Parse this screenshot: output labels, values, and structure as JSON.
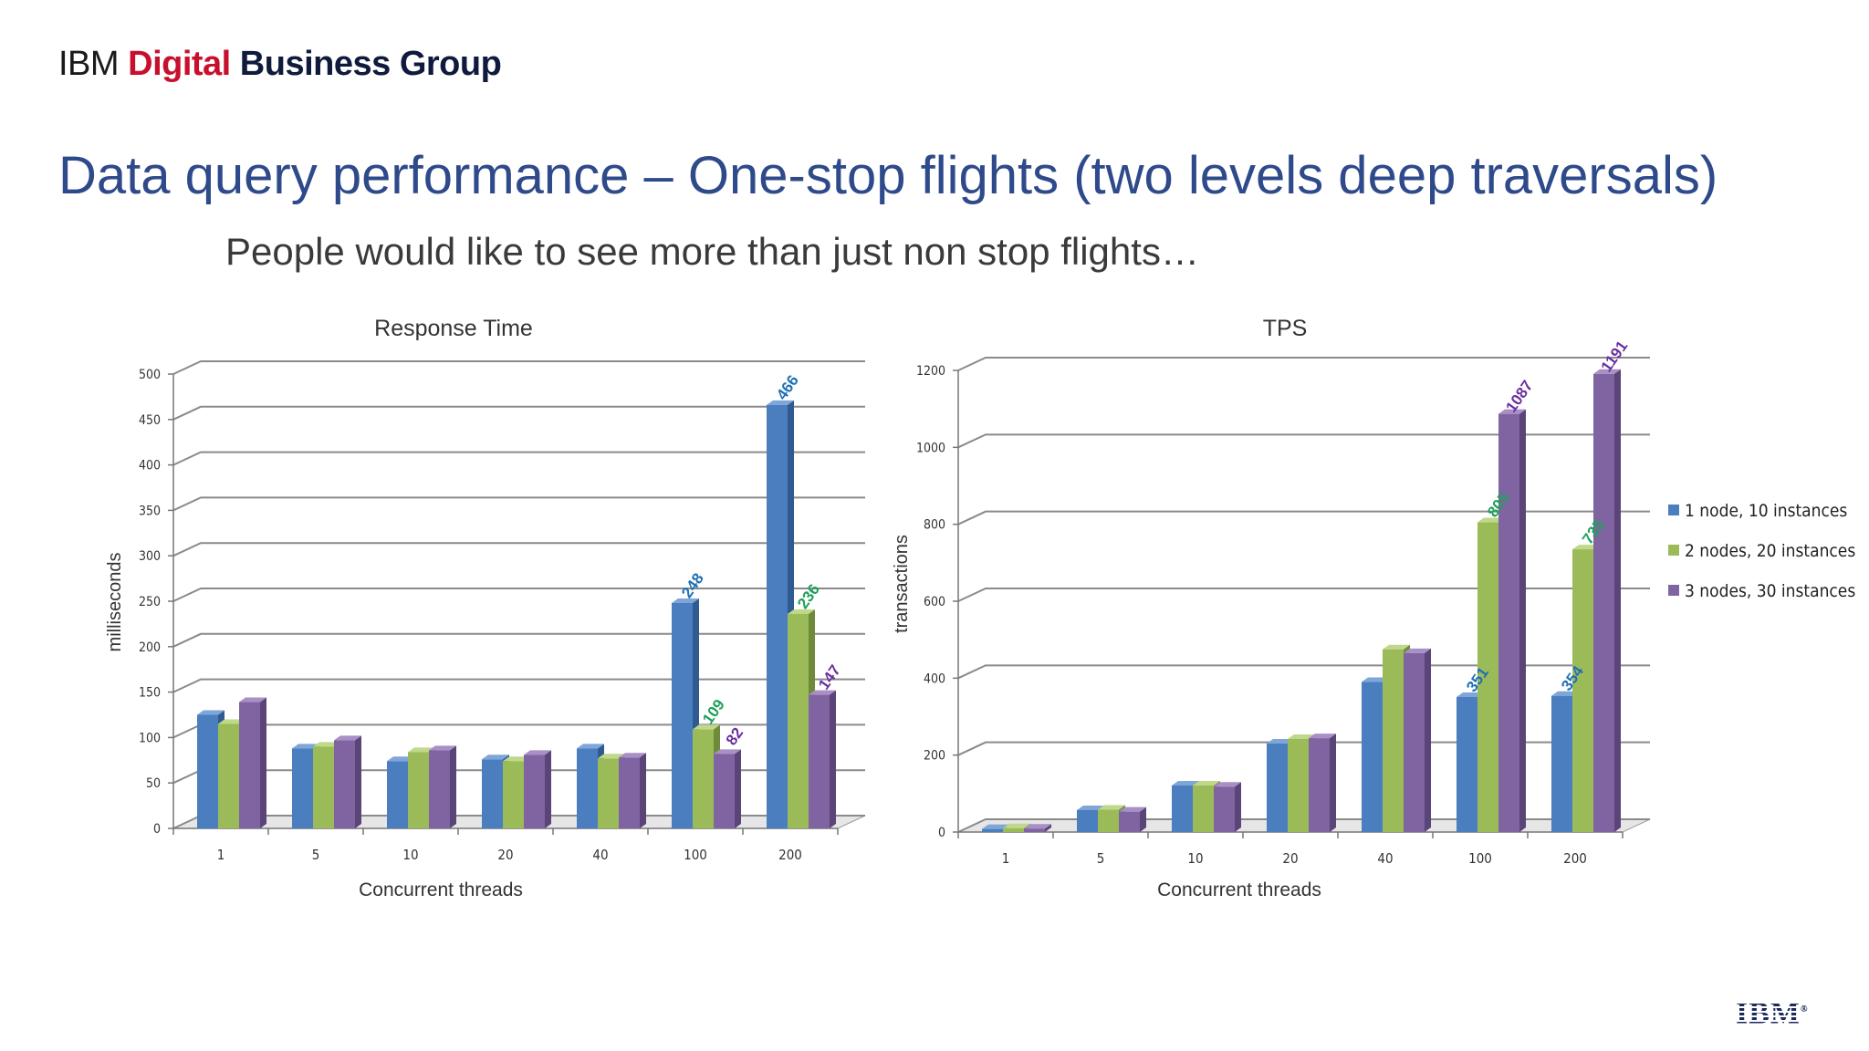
{
  "header": {
    "brand_ibm": "IBM ",
    "brand_digital": "Digital",
    "brand_rest": " Business Group",
    "title": "Data query performance – One-stop flights (two levels deep traversals)",
    "subtitle": "People would like to see more than just non stop flights…"
  },
  "footer": {
    "logo_text": "IBM",
    "logo_mark": "®"
  },
  "colors": {
    "series": [
      "#4a7ebf",
      "#9bbb59",
      "#8064a2"
    ],
    "series_dark": [
      "#2f5b91",
      "#6f8a3a",
      "#5b4478"
    ],
    "series_top": [
      "#7fa6d8",
      "#bfd88a",
      "#a88fc6"
    ],
    "label_colors": [
      "#1f6fb5",
      "#1fa05a",
      "#6b2fa0"
    ],
    "grid": "#8a8a8a"
  },
  "chart_data": [
    {
      "type": "bar",
      "title": "Response Time",
      "xlabel": "Concurrent threads",
      "ylabel": "milliseconds",
      "categories": [
        "1",
        "5",
        "10",
        "20",
        "40",
        "100",
        "200"
      ],
      "ylim": [
        0,
        500
      ],
      "yticks": [
        "0",
        "50",
        "100",
        "150",
        "200",
        "250",
        "300",
        "350",
        "400",
        "450",
        "500"
      ],
      "grid": true,
      "legend": "none",
      "series": [
        {
          "values": [
            125,
            88,
            74,
            76,
            88,
            248,
            466
          ]
        },
        {
          "values": [
            115,
            90,
            84,
            74,
            77,
            109,
            236
          ]
        },
        {
          "values": [
            139,
            97,
            86,
            81,
            78,
            82,
            147
          ]
        }
      ],
      "data_labels": [
        {
          "series": 0,
          "category": 5,
          "text": "248"
        },
        {
          "series": 1,
          "category": 5,
          "text": "109"
        },
        {
          "series": 2,
          "category": 5,
          "text": "82"
        },
        {
          "series": 0,
          "category": 6,
          "text": "466"
        },
        {
          "series": 1,
          "category": 6,
          "text": "236"
        },
        {
          "series": 2,
          "category": 6,
          "text": "147"
        }
      ]
    },
    {
      "type": "bar",
      "title": "TPS",
      "xlabel": "Concurrent threads",
      "ylabel": "transactions",
      "categories": [
        "1",
        "5",
        "10",
        "20",
        "40",
        "100",
        "200"
      ],
      "ylim": [
        0,
        1200
      ],
      "yticks": [
        "0",
        "200",
        "400",
        "600",
        "800",
        "1000",
        "1200"
      ],
      "grid": true,
      "legend": "right",
      "series": [
        {
          "name": "1 node, 10 instances",
          "values": [
            8,
            57,
            121,
            230,
            390,
            351,
            354
          ]
        },
        {
          "name": "2 nodes, 20 instances",
          "values": [
            10,
            58,
            121,
            242,
            475,
            805,
            735
          ]
        },
        {
          "name": "3 nodes, 30 instances",
          "values": [
            9,
            53,
            118,
            244,
            465,
            1087,
            1191
          ]
        }
      ],
      "data_labels": [
        {
          "series": 0,
          "category": 5,
          "text": "351"
        },
        {
          "series": 1,
          "category": 5,
          "text": "805"
        },
        {
          "series": 2,
          "category": 5,
          "text": "1087"
        },
        {
          "series": 0,
          "category": 6,
          "text": "354"
        },
        {
          "series": 1,
          "category": 6,
          "text": "735"
        },
        {
          "series": 2,
          "category": 6,
          "text": "1191"
        }
      ]
    }
  ]
}
